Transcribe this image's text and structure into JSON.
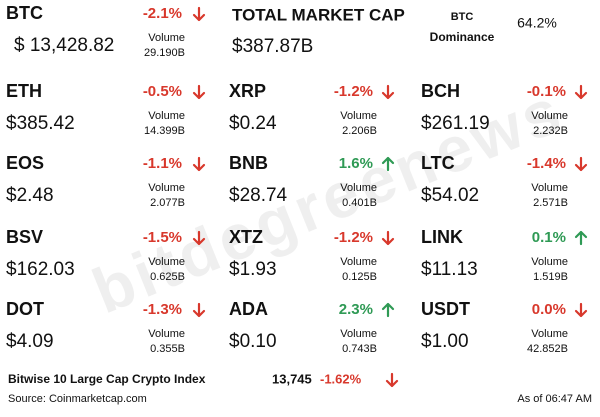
{
  "volume_label": "Volume",
  "watermark": "bitdegreenews",
  "btc": {
    "symbol": "BTC",
    "change": "-2.1%",
    "color": "#d8382c",
    "arrow": "down",
    "volume": "29.190B",
    "price": "$ 13,428.82"
  },
  "market_cap": {
    "title": "TOTAL MARKET CAP",
    "value": "$387.87B"
  },
  "dominance": {
    "label_top": "BTC",
    "label_bottom": "Dominance",
    "value": "64.2%"
  },
  "rows": [
    [
      {
        "symbol": "ETH",
        "change": "-0.5%",
        "color": "#d8382c",
        "arrow": "down",
        "volume": "14.399B",
        "price": "$385.42"
      },
      {
        "symbol": "XRP",
        "change": "-1.2%",
        "color": "#d8382c",
        "arrow": "down",
        "volume": "2.206B",
        "price": "$0.24"
      },
      {
        "symbol": "BCH",
        "change": "-0.1%",
        "color": "#d8382c",
        "arrow": "down",
        "volume": "2.232B",
        "price": "$261.19"
      }
    ],
    [
      {
        "symbol": "EOS",
        "change": "-1.1%",
        "color": "#d8382c",
        "arrow": "down",
        "volume": "2.077B",
        "price": "$2.48"
      },
      {
        "symbol": "BNB",
        "change": "1.6%",
        "color": "#2f9a55",
        "arrow": "up",
        "volume": "0.401B",
        "price": "$28.74"
      },
      {
        "symbol": "LTC",
        "change": "-1.4%",
        "color": "#d8382c",
        "arrow": "down",
        "volume": "2.571B",
        "price": "$54.02"
      }
    ],
    [
      {
        "symbol": "BSV",
        "change": "-1.5%",
        "color": "#d8382c",
        "arrow": "down",
        "volume": "0.625B",
        "price": "$162.03"
      },
      {
        "symbol": "XTZ",
        "change": "-1.2%",
        "color": "#d8382c",
        "arrow": "down",
        "volume": "0.125B",
        "price": "$1.93"
      },
      {
        "symbol": "LINK",
        "change": "0.1%",
        "color": "#2f9a55",
        "arrow": "up",
        "volume": "1.519B",
        "price": "$11.13"
      }
    ],
    [
      {
        "symbol": "DOT",
        "change": "-1.3%",
        "color": "#d8382c",
        "arrow": "down",
        "volume": "0.355B",
        "price": "$4.09"
      },
      {
        "symbol": "ADA",
        "change": "2.3%",
        "color": "#2f9a55",
        "arrow": "up",
        "volume": "0.743B",
        "price": "$0.10"
      },
      {
        "symbol": "USDT",
        "change": "0.0%",
        "color": "#d8382c",
        "arrow": "down",
        "volume": "42.852B",
        "price": "$1.00"
      }
    ]
  ],
  "footer": {
    "index_name": "Bitwise 10 Large Cap Crypto Index",
    "index_value": "13,745",
    "index_change": "-1.62%",
    "index_color": "#d8382c",
    "index_arrow": "down",
    "source": "Source: Coinmarketcap.com",
    "as_of": "As of 06:47 AM"
  }
}
